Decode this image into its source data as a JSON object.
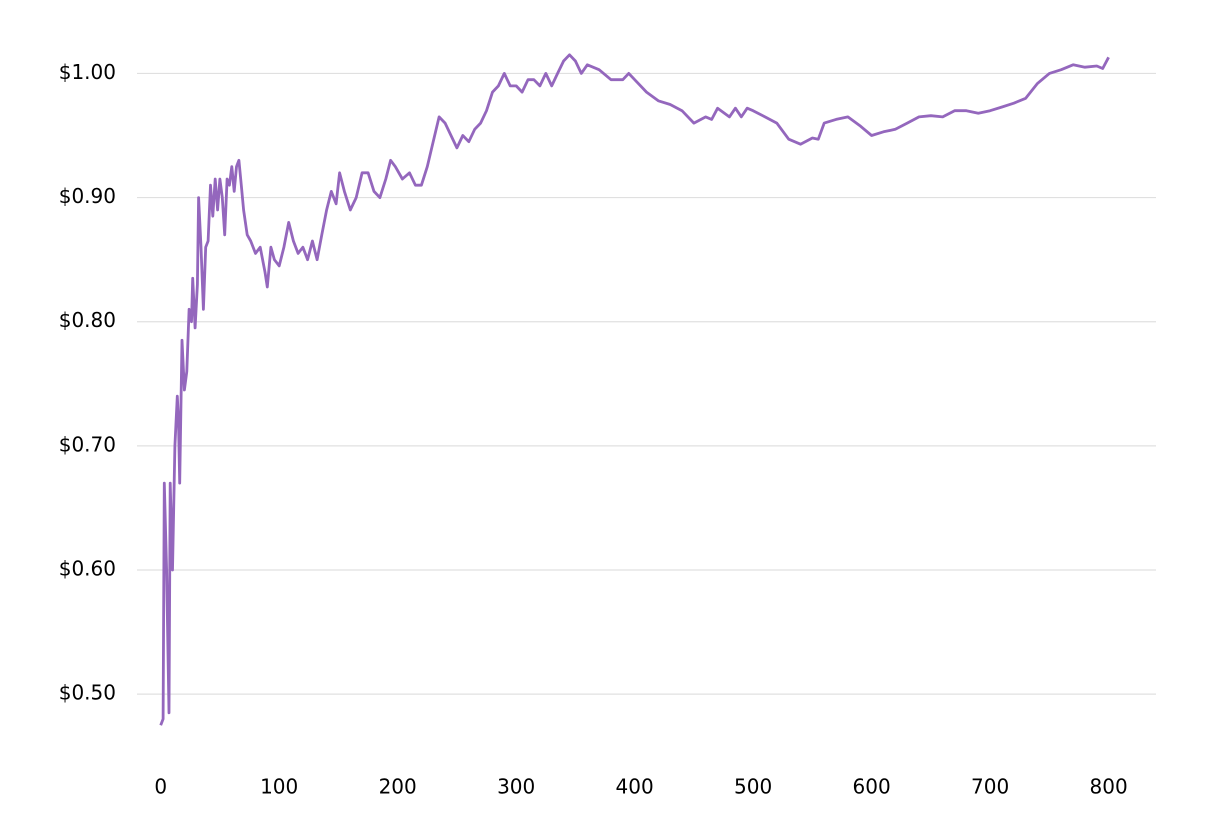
{
  "chart_data": {
    "type": "line",
    "x": [
      0,
      2,
      3,
      5,
      7,
      8,
      10,
      12,
      14,
      15,
      16,
      18,
      20,
      22,
      24,
      26,
      27,
      29,
      31,
      32,
      34,
      36,
      38,
      40,
      42,
      44,
      46,
      48,
      50,
      52,
      54,
      56,
      58,
      60,
      62,
      64,
      66,
      68,
      70,
      73,
      76,
      80,
      84,
      88,
      90,
      93,
      96,
      100,
      104,
      108,
      112,
      116,
      120,
      124,
      128,
      132,
      136,
      140,
      144,
      148,
      151,
      155,
      160,
      165,
      170,
      175,
      180,
      185,
      190,
      194,
      198,
      204,
      210,
      215,
      220,
      225,
      230,
      235,
      240,
      245,
      250,
      255,
      260,
      265,
      270,
      275,
      280,
      285,
      290,
      295,
      300,
      305,
      310,
      315,
      320,
      325,
      330,
      335,
      340,
      345,
      350,
      355,
      360,
      370,
      380,
      390,
      395,
      400,
      410,
      420,
      430,
      440,
      450,
      460,
      465,
      470,
      480,
      485,
      490,
      495,
      500,
      510,
      520,
      530,
      540,
      550,
      555,
      560,
      570,
      580,
      590,
      600,
      610,
      620,
      630,
      640,
      650,
      660,
      670,
      680,
      690,
      700,
      710,
      720,
      730,
      740,
      750,
      760,
      770,
      780,
      790,
      795,
      800
    ],
    "series": [
      {
        "color": "#9467bd",
        "values": [
          0.475,
          0.48,
          0.67,
          0.6,
          0.485,
          0.67,
          0.6,
          0.7,
          0.74,
          0.72,
          0.67,
          0.785,
          0.745,
          0.76,
          0.81,
          0.8,
          0.835,
          0.795,
          0.83,
          0.9,
          0.86,
          0.81,
          0.86,
          0.865,
          0.91,
          0.885,
          0.915,
          0.89,
          0.915,
          0.9,
          0.87,
          0.915,
          0.91,
          0.925,
          0.905,
          0.925,
          0.93,
          0.91,
          0.89,
          0.87,
          0.865,
          0.855,
          0.86,
          0.84,
          0.828,
          0.86,
          0.85,
          0.845,
          0.86,
          0.88,
          0.865,
          0.855,
          0.86,
          0.85,
          0.865,
          0.85,
          0.87,
          0.89,
          0.905,
          0.895,
          0.92,
          0.905,
          0.89,
          0.9,
          0.92,
          0.92,
          0.905,
          0.9,
          0.915,
          0.93,
          0.925,
          0.915,
          0.92,
          0.91,
          0.91,
          0.925,
          0.945,
          0.965,
          0.96,
          0.95,
          0.94,
          0.95,
          0.945,
          0.955,
          0.96,
          0.97,
          0.985,
          0.99,
          1.0,
          0.99,
          0.99,
          0.985,
          0.995,
          0.995,
          0.99,
          1.0,
          0.99,
          1.0,
          1.01,
          1.015,
          1.01,
          1.0,
          1.007,
          1.003,
          0.995,
          0.995,
          1.0,
          0.995,
          0.985,
          0.978,
          0.975,
          0.97,
          0.96,
          0.965,
          0.963,
          0.972,
          0.965,
          0.972,
          0.965,
          0.972,
          0.97,
          0.965,
          0.96,
          0.947,
          0.943,
          0.948,
          0.947,
          0.96,
          0.963,
          0.965,
          0.958,
          0.95,
          0.953,
          0.955,
          0.96,
          0.965,
          0.966,
          0.965,
          0.97,
          0.97,
          0.968,
          0.97,
          0.973,
          0.976,
          0.98,
          0.992,
          1.0,
          1.003,
          1.007,
          1.005,
          1.006,
          1.004,
          1.013
        ]
      }
    ],
    "xlim": [
      -20,
      840
    ],
    "xticks": [
      0,
      100,
      200,
      300,
      400,
      500,
      600,
      700,
      800
    ],
    "ylim": [
      0.455,
      1.035
    ],
    "yticks": [
      {
        "value": 0.5,
        "label": "$0.50"
      },
      {
        "value": 0.6,
        "label": "$0.60"
      },
      {
        "value": 0.7,
        "label": "$0.70"
      },
      {
        "value": 0.8,
        "label": "$0.80"
      },
      {
        "value": 0.9,
        "label": "$0.90"
      },
      {
        "value": 1.0,
        "label": "$1.00"
      }
    ],
    "grid": true
  }
}
